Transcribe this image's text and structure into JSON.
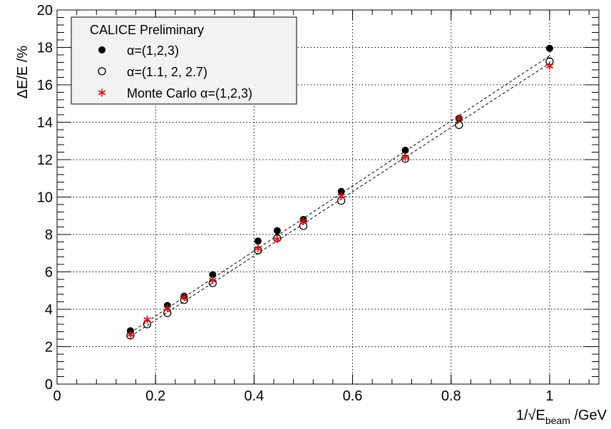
{
  "chart_data": {
    "type": "scatter",
    "title": "",
    "xlabel": {
      "prefix": "1/√E",
      "sub": "beam",
      "suffix": " /GeV"
    },
    "ylabel": "ΔE/E /%",
    "xlim": [
      0,
      1.1
    ],
    "ylim": [
      0,
      20
    ],
    "x_ticks": [
      0,
      0.2,
      0.4,
      0.6,
      0.8,
      1
    ],
    "x_tick_labels": [
      "0",
      "0.2",
      "0.4",
      "0.6",
      "0.8",
      "1"
    ],
    "y_ticks": [
      0,
      2,
      4,
      6,
      8,
      10,
      12,
      14,
      16,
      18,
      20
    ],
    "y_tick_labels": [
      "0",
      "2",
      "4",
      "6",
      "8",
      "10",
      "12",
      "14",
      "16",
      "18",
      "20"
    ],
    "grid": true,
    "legend_position": "top-left",
    "legend_header": "CALICE Preliminary",
    "series": [
      {
        "name": "α=(1,2,3)",
        "marker": "filled-circle",
        "color": "#000000",
        "x": [
          0.149,
          0.224,
          0.258,
          0.316,
          0.408,
          0.447,
          0.5,
          0.577,
          0.707,
          0.816,
          1.0
        ],
        "y": [
          2.85,
          4.2,
          4.7,
          5.85,
          7.65,
          8.2,
          8.8,
          10.3,
          12.5,
          14.2,
          17.95
        ]
      },
      {
        "name": "α=(1.1, 2, 2.7)",
        "marker": "open-circle",
        "color": "#000000",
        "x": [
          0.149,
          0.183,
          0.224,
          0.258,
          0.316,
          0.408,
          0.447,
          0.5,
          0.577,
          0.707,
          0.816,
          1.0
        ],
        "y": [
          2.6,
          3.2,
          3.8,
          4.5,
          5.4,
          7.15,
          7.8,
          8.45,
          9.8,
          12.05,
          13.85,
          17.25
        ]
      },
      {
        "name": "Monte Carlo  α=(1,2,3)",
        "marker": "asterisk",
        "color": "#ff0000",
        "x": [
          0.149,
          0.183,
          0.224,
          0.258,
          0.316,
          0.408,
          0.447,
          0.5,
          0.577,
          0.707,
          0.816,
          1.0
        ],
        "y": [
          2.65,
          3.45,
          4.05,
          4.65,
          5.55,
          7.25,
          7.75,
          8.7,
          10.05,
          12.15,
          14.2,
          17.0
        ]
      }
    ],
    "fit_lines": [
      {
        "x": [
          0.149,
          1.0
        ],
        "y": [
          2.75,
          17.55
        ]
      },
      {
        "x": [
          0.149,
          1.0
        ],
        "y": [
          2.55,
          17.15
        ]
      }
    ]
  }
}
